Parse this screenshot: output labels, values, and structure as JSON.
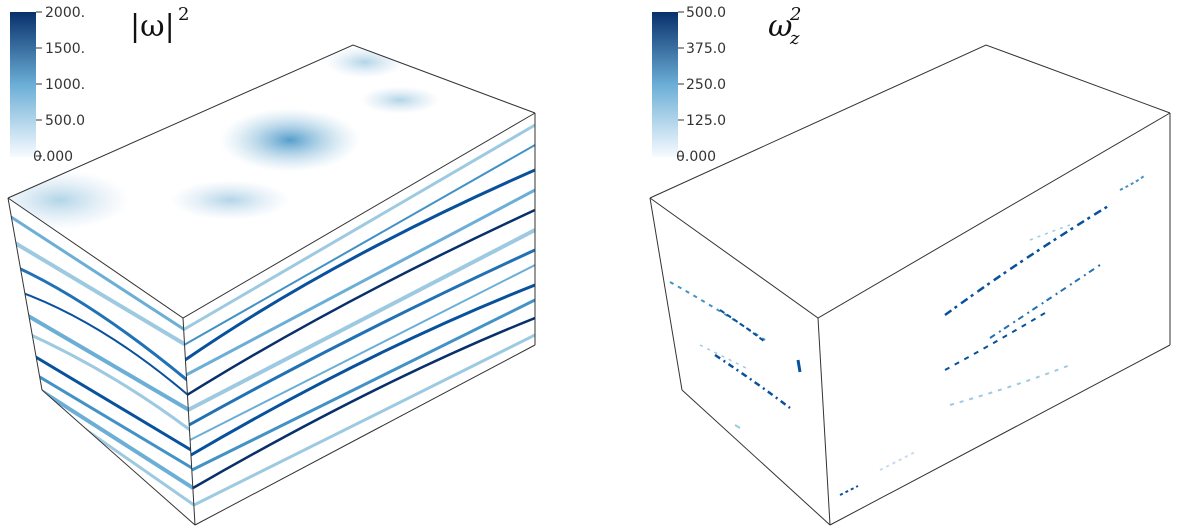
{
  "panels": [
    {
      "title": "|ω|",
      "title_superscript": "2",
      "title_subscript": "",
      "colorbar": {
        "ticks": [
          "2000.",
          "1500.",
          "1000.",
          "500.0",
          "0.000"
        ],
        "color_min": "#f7fbff",
        "color_max": "#08306b"
      }
    },
    {
      "title": "ω",
      "title_superscript": "2",
      "title_subscript": "z",
      "colorbar": {
        "ticks": [
          "500.0",
          "375.0",
          "250.0",
          "125.0",
          "0.000"
        ],
        "color_min": "#f7fbff",
        "color_max": "#08306b"
      }
    }
  ],
  "colors": {
    "edge": "#333333",
    "light_blue": "#9ecae1",
    "mid_blue": "#4292c6",
    "dark_blue": "#08519c"
  }
}
